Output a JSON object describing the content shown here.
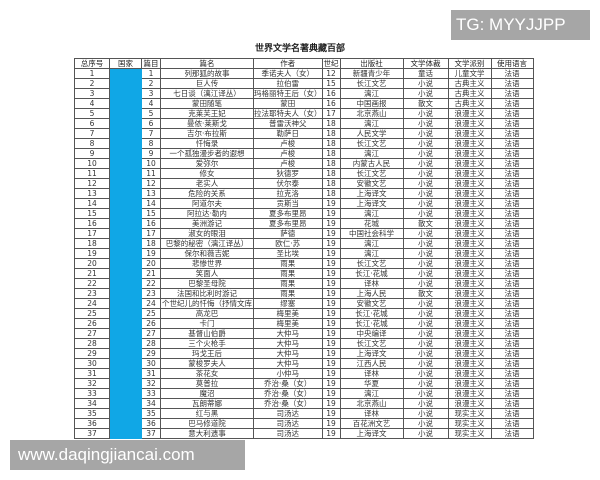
{
  "title": "世界文学名著典藏百部",
  "columns": [
    "总序号",
    "国家",
    "篇目",
    "篇名",
    "作者",
    "世纪",
    "出版社",
    "文学体裁",
    "文学派别",
    "使用语言"
  ],
  "country_color": "#10a7e6",
  "rows": [
    [
      "1",
      "",
      "1",
      "列那狐的故事",
      "季诺夫人（女）",
      "12",
      "新疆青少年",
      "童话",
      "儿童文学",
      "法语"
    ],
    [
      "2",
      "",
      "2",
      "巨人传",
      "拉伯雷",
      "15",
      "长江文艺",
      "小说",
      "古典主义",
      "法语"
    ],
    [
      "3",
      "",
      "3",
      "七日谈（漓江译丛）",
      "玛格丽特王后（女）",
      "16",
      "漓江",
      "小说",
      "古典主义",
      "法语"
    ],
    [
      "4",
      "",
      "4",
      "蒙田随笔",
      "蒙田",
      "16",
      "中国画报",
      "散文",
      "古典主义",
      "法语"
    ],
    [
      "5",
      "",
      "5",
      "克莱芙王妃",
      "拉法耶特夫人（女）",
      "17",
      "北京燕山",
      "小说",
      "浪漫主义",
      "法语"
    ],
    [
      "6",
      "",
      "6",
      "曼侬·莱斯戈",
      "普雷沃神父",
      "18",
      "漓江",
      "小说",
      "浪漫主义",
      "法语"
    ],
    [
      "7",
      "",
      "7",
      "吉尔·布拉斯",
      "勒萨日",
      "18",
      "人民文学",
      "小说",
      "浪漫主义",
      "法语"
    ],
    [
      "8",
      "",
      "8",
      "忏悔录",
      "卢梭",
      "18",
      "长江文艺",
      "小说",
      "浪漫主义",
      "法语"
    ],
    [
      "9",
      "",
      "9",
      "一个孤独漫步者的遐想",
      "卢梭",
      "18",
      "漓江",
      "小说",
      "浪漫主义",
      "法语"
    ],
    [
      "10",
      "",
      "10",
      "爱弥尔",
      "卢梭",
      "18",
      "内蒙古人民",
      "小说",
      "浪漫主义",
      "法语"
    ],
    [
      "11",
      "",
      "11",
      "修女",
      "狄德罗",
      "18",
      "长江文艺",
      "小说",
      "浪漫主义",
      "法语"
    ],
    [
      "12",
      "",
      "12",
      "老实人",
      "伏尔泰",
      "18",
      "安徽文艺",
      "小说",
      "浪漫主义",
      "法语"
    ],
    [
      "13",
      "",
      "13",
      "危险的关系",
      "拉克洛",
      "18",
      "上海译文",
      "小说",
      "浪漫主义",
      "法语"
    ],
    [
      "14",
      "",
      "14",
      "阿道尔夫",
      "贡斯当",
      "19",
      "上海译文",
      "小说",
      "浪漫主义",
      "法语"
    ],
    [
      "15",
      "",
      "15",
      "阿拉达·勒内",
      "夏多布里昂",
      "19",
      "漓江",
      "小说",
      "浪漫主义",
      "法语"
    ],
    [
      "16",
      "",
      "16",
      "美洲游记",
      "夏多布里昂",
      "19",
      "花城",
      "散文",
      "浪漫主义",
      "法语"
    ],
    [
      "17",
      "",
      "17",
      "淑女的眼泪",
      "萨德",
      "19",
      "中国社会科学",
      "小说",
      "浪漫主义",
      "法语"
    ],
    [
      "18",
      "",
      "18",
      "巴黎的秘密（漓江译丛）",
      "欧仁·苏",
      "19",
      "漓江",
      "小说",
      "浪漫主义",
      "法语"
    ],
    [
      "19",
      "",
      "19",
      "保尔和薇吉妮",
      "圣比埃",
      "19",
      "漓江",
      "小说",
      "浪漫主义",
      "法语"
    ],
    [
      "20",
      "",
      "20",
      "悲惨世界",
      "雨果",
      "19",
      "长江文艺",
      "小说",
      "浪漫主义",
      "法语"
    ],
    [
      "21",
      "",
      "21",
      "笑面人",
      "雨果",
      "19",
      "长江·花城",
      "小说",
      "浪漫主义",
      "法语"
    ],
    [
      "22",
      "",
      "22",
      "巴黎圣母院",
      "雨果",
      "19",
      "译林",
      "小说",
      "浪漫主义",
      "法语"
    ],
    [
      "23",
      "",
      "23",
      "法国和比利时游记",
      "雨果",
      "19",
      "上海人民",
      "散文",
      "浪漫主义",
      "法语"
    ],
    [
      "24",
      "",
      "24",
      "个世纪儿的忏悔（抒情文库",
      "缪塞",
      "19",
      "安徽文艺",
      "小说",
      "浪漫主义",
      "法语"
    ],
    [
      "25",
      "",
      "25",
      "高龙巴",
      "梅里美",
      "19",
      "长江·花城",
      "小说",
      "浪漫主义",
      "法语"
    ],
    [
      "26",
      "",
      "26",
      "卡门",
      "梅里美",
      "19",
      "长江·花城",
      "小说",
      "浪漫主义",
      "法语"
    ],
    [
      "27",
      "",
      "27",
      "基督山伯爵",
      "大仲马",
      "19",
      "中央编译",
      "小说",
      "浪漫主义",
      "法语"
    ],
    [
      "28",
      "",
      "28",
      "三个火枪手",
      "大仲马",
      "19",
      "长江文艺",
      "小说",
      "浪漫主义",
      "法语"
    ],
    [
      "29",
      "",
      "29",
      "玛戈王后",
      "大仲马",
      "19",
      "上海译文",
      "小说",
      "浪漫主义",
      "法语"
    ],
    [
      "30",
      "",
      "30",
      "蒙梭罗夫人",
      "大仲马",
      "19",
      "江西人民",
      "小说",
      "浪漫主义",
      "法语"
    ],
    [
      "31",
      "",
      "31",
      "茶花女",
      "小仲马",
      "19",
      "译林",
      "小说",
      "浪漫主义",
      "法语"
    ],
    [
      "32",
      "",
      "32",
      "莫普拉",
      "乔治·桑（女）",
      "19",
      "华夏",
      "小说",
      "浪漫主义",
      "法语"
    ],
    [
      "33",
      "",
      "33",
      "魔沼",
      "乔治·桑（女）",
      "19",
      "漓江",
      "小说",
      "浪漫主义",
      "法语"
    ],
    [
      "34",
      "",
      "34",
      "瓦朗蒂娜",
      "乔治·桑（女）",
      "19",
      "北京燕山",
      "小说",
      "浪漫主义",
      "法语"
    ],
    [
      "35",
      "",
      "35",
      "红与黑",
      "司汤达",
      "19",
      "译林",
      "小说",
      "现实主义",
      "法语"
    ],
    [
      "36",
      "",
      "36",
      "巴马修道院",
      "司汤达",
      "19",
      "百花洲文艺",
      "小说",
      "现实主义",
      "法语"
    ],
    [
      "37",
      "",
      "37",
      "意大利遗事",
      "司汤达",
      "19",
      "上海译文",
      "小说",
      "现实主义",
      "法语"
    ]
  ],
  "watermark_top": "TG: MYYJJPP",
  "watermark_bottom": "www.daqingjiancai.com"
}
